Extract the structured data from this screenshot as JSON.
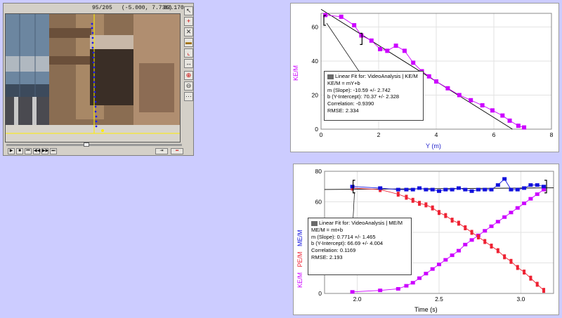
{
  "video": {
    "frame_counter": "95/205",
    "coordinates": "(-5.000, 7.736)",
    "time_readout": "03.170",
    "frame_fraction": 0.46
  },
  "graph1": {
    "ylabel": "KE/M",
    "xlabel": "Y (m)",
    "xticks": [
      "0",
      "2",
      "4",
      "6",
      "8"
    ],
    "yticks": [
      "0",
      "20",
      "40",
      "60"
    ],
    "fit": {
      "line1": "Linear Fit for: VideoAnalysis | KE/M",
      "line2": "KE/M = mY+b",
      "line3": "m (Slope): -10.59 +/- 2.742",
      "line4": "b (Y-Intercept): 70.37 +/- 2.328",
      "line5": "Correlation: -0.9390",
      "line6": "RMSE: 2.334"
    }
  },
  "graph2": {
    "ylabel_ke": "KE/M",
    "ylabel_pe": "PE/M",
    "ylabel_me": "ME/M",
    "xlabel": "Time (s)",
    "xticks": [
      "2.0",
      "2.5",
      "3.0"
    ],
    "yticks": [
      "0",
      "20",
      "40",
      "60",
      "80"
    ],
    "fit": {
      "line1": "Linear Fit for: VideoAnalysis | ME/M",
      "line2": "ME/M = mt+b",
      "line3": "m (Slope): 0.7714 +/- 1.465",
      "line4": "b (Y-Intercept): 66.69 +/- 4.004",
      "line5": "Correlation: 0.1169",
      "line6": "RMSE: 2.193"
    }
  },
  "colors": {
    "ke": "#cc00ff",
    "pe": "#ee2233",
    "me": "#1111dd",
    "axis_blue": "#2222cc"
  },
  "chart_data": [
    {
      "type": "scatter",
      "xlabel": "Y (m)",
      "ylabel": "KE/M",
      "xlim": [
        0,
        8
      ],
      "ylim": [
        0,
        68
      ],
      "series": [
        {
          "name": "KE/M",
          "x": [
            0.15,
            0.7,
            1.15,
            1.4,
            1.75,
            2.05,
            2.3,
            2.6,
            2.9,
            3.2,
            3.5,
            3.75,
            4.0,
            4.4,
            4.8,
            5.2,
            5.6,
            5.95,
            6.3,
            6.55,
            6.85,
            7.05
          ],
          "y": [
            67,
            66,
            61,
            55,
            52,
            47,
            46,
            49,
            46,
            39,
            34,
            31,
            28,
            24,
            20,
            17,
            14,
            11,
            8,
            5,
            2,
            1
          ]
        }
      ],
      "fit": {
        "slope": -10.59,
        "intercept": 70.37
      }
    },
    {
      "type": "line",
      "xlabel": "Time (s)",
      "xlim": [
        1.8,
        3.2
      ],
      "ylim": [
        0,
        80
      ],
      "series": [
        {
          "name": "KE/M",
          "x": [
            1.97,
            2.14,
            2.25,
            2.3,
            2.34,
            2.38,
            2.42,
            2.46,
            2.5,
            2.54,
            2.58,
            2.62,
            2.66,
            2.7,
            2.74,
            2.78,
            2.82,
            2.86,
            2.9,
            2.94,
            2.98,
            3.02,
            3.06,
            3.1,
            3.14
          ],
          "y": [
            1,
            2,
            3,
            5,
            7,
            10,
            13,
            16,
            19,
            22,
            25,
            28,
            32,
            35,
            38,
            41,
            44,
            47,
            50,
            53,
            56,
            59,
            62,
            65,
            68
          ]
        },
        {
          "name": "PE/M",
          "x": [
            1.97,
            2.14,
            2.25,
            2.3,
            2.34,
            2.38,
            2.42,
            2.46,
            2.5,
            2.54,
            2.58,
            2.62,
            2.66,
            2.7,
            2.74,
            2.78,
            2.82,
            2.86,
            2.9,
            2.94,
            2.98,
            3.02,
            3.06,
            3.1,
            3.14
          ],
          "y": [
            69,
            68,
            65,
            63,
            61,
            59,
            58,
            56,
            53,
            51,
            48,
            46,
            43,
            40,
            37,
            34,
            31,
            28,
            24,
            21,
            17,
            14,
            10,
            6,
            2
          ]
        },
        {
          "name": "ME/M",
          "x": [
            1.97,
            2.14,
            2.25,
            2.3,
            2.34,
            2.38,
            2.42,
            2.46,
            2.5,
            2.54,
            2.58,
            2.62,
            2.66,
            2.7,
            2.74,
            2.78,
            2.82,
            2.86,
            2.9,
            2.94,
            2.98,
            3.02,
            3.06,
            3.1,
            3.14
          ],
          "y": [
            70,
            69,
            68,
            68,
            68,
            69,
            68,
            68,
            67,
            68,
            68,
            69,
            68,
            67,
            68,
            68,
            68,
            71,
            75,
            68,
            68,
            69,
            71,
            71,
            70
          ]
        }
      ],
      "fit": {
        "series": "ME/M",
        "slope": 0.7714,
        "intercept": 66.69
      }
    }
  ]
}
